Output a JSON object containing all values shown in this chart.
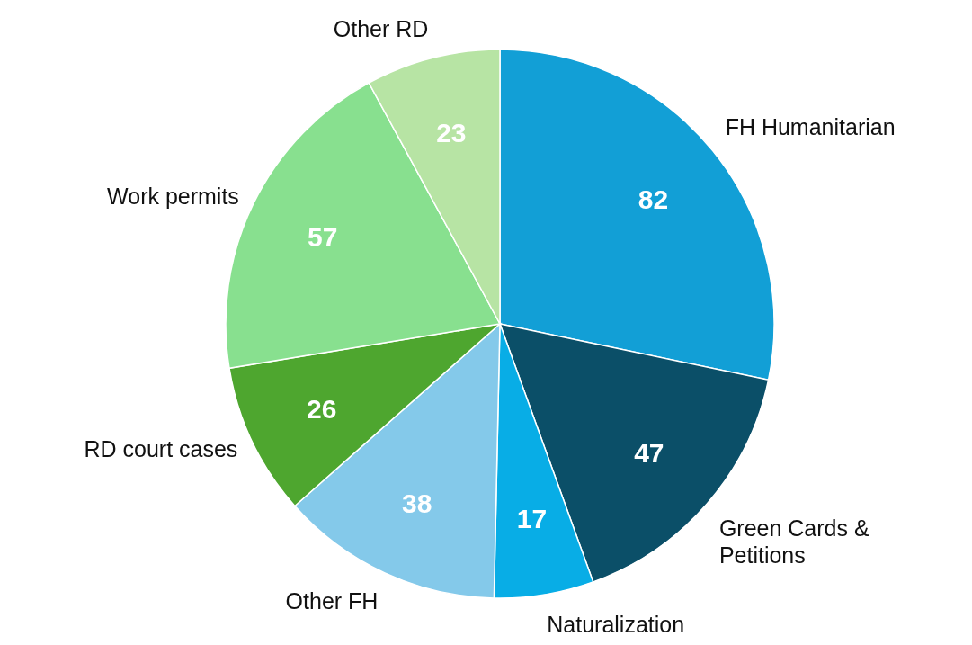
{
  "chart_data": {
    "type": "pie",
    "categories": [
      "FH Humanitarian",
      "Green Cards & Petitions",
      "Naturalization",
      "Other FH",
      "RD court cases",
      "Work permits",
      "Other RD"
    ],
    "values": [
      82,
      47,
      17,
      38,
      26,
      57,
      23
    ],
    "colors": [
      "#129fd6",
      "#0b4f68",
      "#08ade6",
      "#84c9ea",
      "#4ea62f",
      "#88e08f",
      "#b7e4a4"
    ],
    "data_labels": true
  }
}
